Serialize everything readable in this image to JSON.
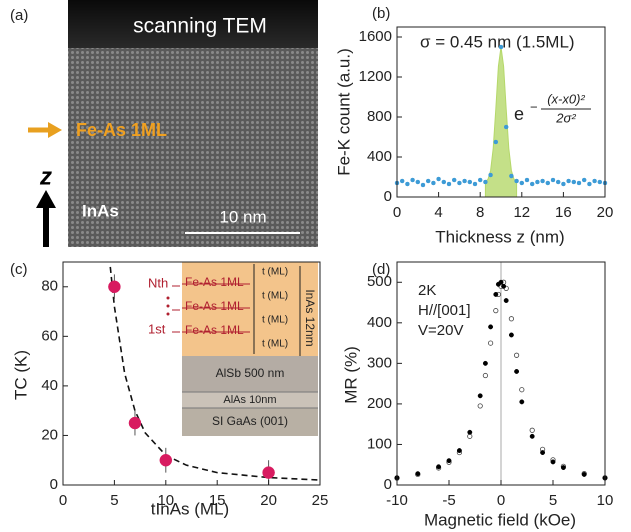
{
  "image_panel": {
    "label": "(a)",
    "title": "scanning TEM",
    "marker_label": "Fe-As 1ML",
    "axis_label": "z",
    "layer_label": "InAs",
    "scale_bar": "10 nm"
  },
  "chart_data": [
    {
      "type": "scatter",
      "label": "(b)",
      "xlabel": "Thickness z (nm)",
      "ylabel": "Fe-K count (a.u.)",
      "annotation": "σ = 0.45 nm  (1.5ML)",
      "formula": {
        "base": "e",
        "sign": "−",
        "numerator": "(x-x0)²",
        "denominator": "2σ²"
      },
      "xlim": [
        0,
        20
      ],
      "ylim": [
        0,
        1700
      ],
      "xticks": [
        0,
        4,
        8,
        12,
        16,
        20
      ],
      "yticks": [
        0,
        400,
        800,
        1200,
        1600
      ],
      "series": [
        {
          "mode": "area",
          "color": "#b5d86a",
          "x": [
            8.5,
            8.75,
            9,
            9.25,
            9.5,
            9.75,
            10,
            10.25,
            10.5,
            10.75,
            11,
            11.25,
            11.5
          ],
          "values": [
            155,
            178,
            264,
            486,
            878,
            1307,
            1500,
            1307,
            878,
            486,
            264,
            178,
            155
          ]
        },
        {
          "mode": "markers",
          "color": "#3d9bd6",
          "x": [
            0,
            0.5,
            1,
            1.5,
            2,
            2.5,
            3,
            3.5,
            4,
            4.5,
            5,
            5.5,
            6,
            6.5,
            7,
            7.5,
            8,
            8.5,
            9,
            9.5,
            10,
            10.5,
            11,
            11.5,
            12,
            12.5,
            13,
            13.5,
            14,
            14.5,
            15,
            15.5,
            16,
            16.5,
            17,
            17.5,
            18,
            18.5,
            19,
            19.5,
            20
          ],
          "values": [
            140,
            160,
            130,
            170,
            150,
            120,
            160,
            140,
            180,
            150,
            130,
            170,
            140,
            160,
            150,
            130,
            170,
            150,
            220,
            550,
            1500,
            700,
            210,
            160,
            140,
            170,
            130,
            150,
            160,
            140,
            170,
            150,
            130,
            160,
            150,
            140,
            170,
            130,
            160,
            150,
            140
          ]
        }
      ]
    },
    {
      "type": "scatter",
      "label": "(c)",
      "xlabel": "tInAs (ML)",
      "ylabel": "TC (K)",
      "xlim": [
        0,
        25
      ],
      "ylim": [
        0,
        90
      ],
      "xticks": [
        0,
        5,
        10,
        15,
        20,
        25
      ],
      "yticks": [
        0,
        20,
        40,
        60,
        80
      ],
      "series": [
        {
          "mode": "dashed",
          "color": "#111111",
          "x": [
            4.6,
            5,
            6,
            7,
            8,
            10,
            12,
            15,
            20,
            25
          ],
          "values": [
            88,
            72,
            45,
            30,
            21,
            12,
            8,
            5,
            3,
            2
          ]
        },
        {
          "mode": "markers",
          "color": "#d81b60",
          "x": [
            5,
            7,
            10,
            20
          ],
          "values": [
            80,
            25,
            10,
            5
          ],
          "errors": [
            5,
            5,
            5,
            5
          ]
        }
      ],
      "inset": {
        "fe_as": [
          "Fe-As 1ML",
          "Fe-As 1ML",
          "Fe-As 1ML"
        ],
        "t_labels": [
          "t (ML)",
          "t (ML)",
          "t (ML)",
          "t (ML)"
        ],
        "inas": "InAs 12nm",
        "nth": "Nth",
        "first": "1st",
        "layers": [
          "AlSb 500 nm",
          "AlAs 10nm",
          "SI GaAs (001)"
        ]
      }
    },
    {
      "type": "scatter",
      "label": "(d)",
      "xlabel": "Magnetic field (kOe)",
      "ylabel": "MR (%)",
      "annotations": [
        "2K",
        "H//[001]",
        "V=20V"
      ],
      "zero_line": true,
      "xlim": [
        -10,
        10
      ],
      "ylim": [
        0,
        550
      ],
      "xticks": [
        -10,
        -5,
        0,
        5,
        10
      ],
      "yticks": [
        0,
        100,
        200,
        300,
        400,
        500
      ],
      "series": [
        {
          "mode": "markers",
          "filled": false,
          "color": "#444444",
          "x": [
            -10,
            -8,
            -6,
            -5,
            -4,
            -3,
            -2,
            -1.5,
            -1,
            -0.5,
            -0.25,
            0,
            0.25,
            0.5,
            1,
            1.5,
            2,
            3,
            4,
            5,
            6,
            8,
            10
          ],
          "values": [
            17,
            26,
            42,
            56,
            80,
            120,
            195,
            270,
            350,
            430,
            470,
            490,
            500,
            485,
            410,
            320,
            235,
            135,
            88,
            62,
            46,
            28,
            18
          ]
        },
        {
          "mode": "markers",
          "color": "#000000",
          "x": [
            -10,
            -8,
            -6,
            -5,
            -4,
            -3,
            -2,
            -1.5,
            -1,
            -0.5,
            -0.25,
            0,
            0.25,
            0.5,
            1,
            1.5,
            2,
            3,
            4,
            5,
            6,
            8,
            10
          ],
          "values": [
            18,
            28,
            45,
            60,
            85,
            130,
            220,
            300,
            390,
            470,
            495,
            500,
            490,
            455,
            370,
            280,
            205,
            120,
            80,
            57,
            43,
            26,
            17
          ]
        }
      ]
    }
  ]
}
